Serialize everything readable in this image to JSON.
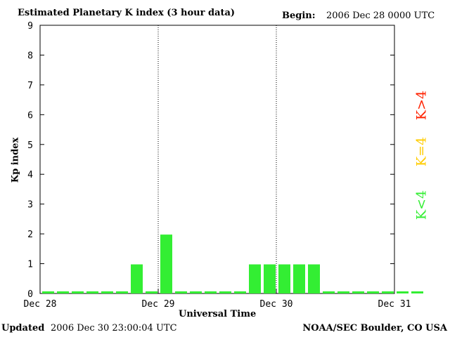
{
  "header": {
    "title": "Estimated Planetary K index (3 hour data)",
    "begin_label": "Begin:",
    "begin_value": "2006 Dec 28 0000 UTC"
  },
  "footer": {
    "updated_label": "Updated",
    "updated_value": "2006 Dec 30 23:00:04 UTC",
    "org": "NOAA/SEC Boulder, CO USA"
  },
  "legend": {
    "high": {
      "label": "K>4",
      "color": "#ff2200"
    },
    "equal": {
      "label": "K=4",
      "color": "#ffcc00"
    },
    "low": {
      "label": "K<4",
      "color": "#33ee33"
    }
  },
  "chart_data": {
    "type": "bar",
    "title": "Estimated Planetary K index (3 hour data)",
    "xlabel": "Universal Time",
    "ylabel": "Kp index",
    "ylim": [
      0,
      9
    ],
    "yticks": [
      0,
      1,
      2,
      3,
      4,
      5,
      6,
      7,
      8,
      9
    ],
    "xlim_days": [
      0,
      3
    ],
    "x_tick_labels": [
      "Dec 28",
      "Dec 29",
      "Dec 30",
      "Dec 31"
    ],
    "day_separators": [
      "Dec 29",
      "Dec 30"
    ],
    "grid": false,
    "bar_color": "#33ee33",
    "interval_hours": 3,
    "values": [
      0,
      0,
      0,
      0,
      0,
      0,
      1,
      0,
      2,
      0,
      0,
      0,
      0,
      0,
      1,
      1,
      1,
      1,
      1,
      0,
      0,
      0,
      0,
      0,
      0,
      0
    ]
  }
}
